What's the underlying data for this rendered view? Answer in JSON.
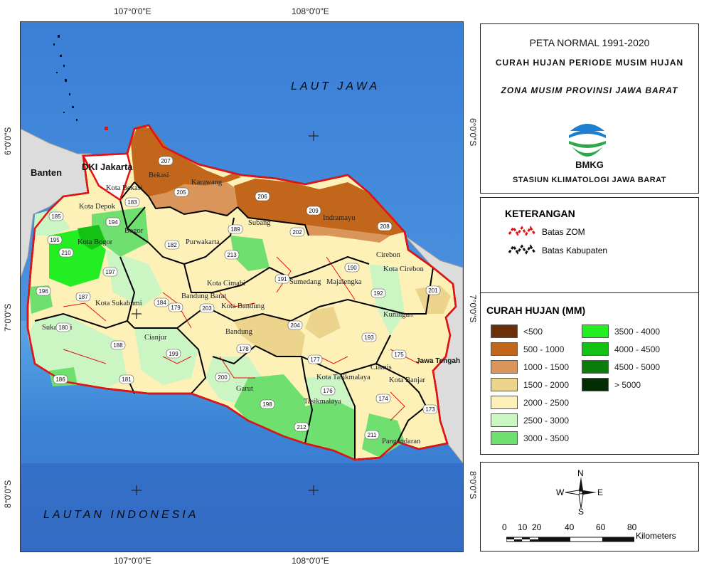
{
  "grid": {
    "top_labels": [
      "107°0'0\"E",
      "108°0'0\"E"
    ],
    "bottom_labels": [
      "107°0'0\"E",
      "108°0'0\"E"
    ],
    "left_labels": [
      "6°0'0\"S",
      "7°0'0\"S",
      "8°0'0\"S"
    ],
    "right_labels": [
      "6°0'0\"S",
      "7°0'0\"S",
      "8°0'0\"S"
    ]
  },
  "map": {
    "sea_north": "LAUT JAWA",
    "sea_south": "LAUTAN INDONESIA",
    "province_left": "Banten",
    "province_jakarta": "DKI Jakarta",
    "province_right": "Jawa Tengah",
    "regions": [
      {
        "name": "Bekasi"
      },
      {
        "name": "Karawang"
      },
      {
        "name": "Kota Bekasi"
      },
      {
        "name": "Kota Depok"
      },
      {
        "name": "Bogor"
      },
      {
        "name": "Kota Bogor"
      },
      {
        "name": "Subang"
      },
      {
        "name": "Indramayu"
      },
      {
        "name": "Purwakarta"
      },
      {
        "name": "Cirebon"
      },
      {
        "name": "Kota Cirebon"
      },
      {
        "name": "Sumedang"
      },
      {
        "name": "Majalengka"
      },
      {
        "name": "Kota Cimahi"
      },
      {
        "name": "Bandung Barat"
      },
      {
        "name": "Kota Bandung"
      },
      {
        "name": "Kota Sukabumi"
      },
      {
        "name": "Sukabumi"
      },
      {
        "name": "Cianjur"
      },
      {
        "name": "Bandung"
      },
      {
        "name": "Kuningan"
      },
      {
        "name": "Ciamis"
      },
      {
        "name": "Kota Tasikmalaya"
      },
      {
        "name": "Kota Banjar"
      },
      {
        "name": "Garut"
      },
      {
        "name": "Tasikmalaya"
      },
      {
        "name": "Pangandaran"
      }
    ],
    "zom_codes": [
      "207",
      "205",
      "206",
      "209",
      "208",
      "183",
      "185",
      "194",
      "195",
      "210",
      "182",
      "189",
      "202",
      "213",
      "190",
      "191",
      "197",
      "196",
      "187",
      "184",
      "179",
      "203",
      "192",
      "201",
      "180",
      "188",
      "199",
      "178",
      "204",
      "193",
      "175",
      "177",
      "200",
      "176",
      "186",
      "181",
      "198",
      "212",
      "211",
      "174",
      "173"
    ]
  },
  "title": {
    "line1": "PETA NORMAL 1991-2020",
    "line2": "CURAH HUJAN PERIODE MUSIM HUJAN",
    "line3": "ZONA MUSIM PROVINSI JAWA BARAT",
    "logo_text": "BMKG",
    "station": "STASIUN KLIMATOLOGI JAWA BARAT"
  },
  "legend": {
    "heading": "KETERANGAN",
    "zom_label": "Batas ZOM",
    "kab_label": "Batas Kabupaten"
  },
  "rain": {
    "heading": "CURAH HUJAN (MM)",
    "classes": [
      {
        "label": "<500",
        "color": "#6b2f0a"
      },
      {
        "label": "500 - 1000",
        "color": "#c1661a"
      },
      {
        "label": "1000 - 1500",
        "color": "#d9955a"
      },
      {
        "label": "1500 - 2000",
        "color": "#ecd48c"
      },
      {
        "label": "2000 - 2500",
        "color": "#fdf1b8"
      },
      {
        "label": "2500 - 3000",
        "color": "#ccf5c4"
      },
      {
        "label": "3000 - 3500",
        "color": "#6fe06f"
      },
      {
        "label": "3500 - 4000",
        "color": "#22ee22"
      },
      {
        "label": "4000 - 4500",
        "color": "#13c213"
      },
      {
        "label": "4500 - 5000",
        "color": "#0a7d0a"
      },
      {
        "label": "> 5000",
        "color": "#052d05"
      }
    ]
  },
  "compass": {
    "n": "N",
    "s": "S",
    "e": "E",
    "w": "W"
  },
  "scale": {
    "ticks": [
      "0",
      "10",
      "20",
      "40",
      "60",
      "80"
    ],
    "unit": "Kilometers"
  }
}
